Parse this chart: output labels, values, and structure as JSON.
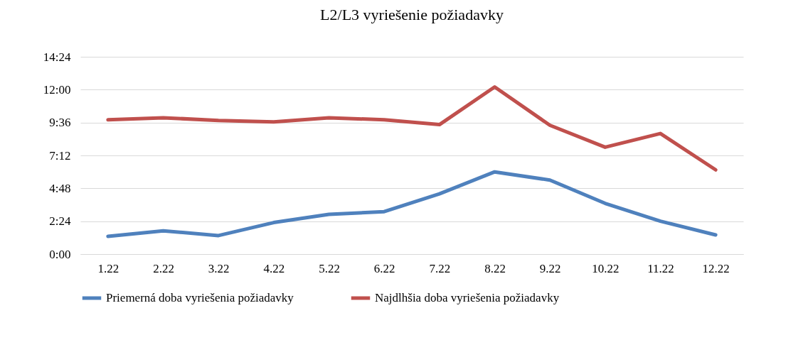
{
  "chart_data": {
    "type": "line",
    "title": "L2/L3 vyriešenie požiadavky",
    "categories": [
      "1.22",
      "2.22",
      "3.22",
      "4.22",
      "5.22",
      "6.22",
      "7.22",
      "8.22",
      "9.22",
      "10.22",
      "11.22",
      "12.22"
    ],
    "series": [
      {
        "name": "Priemerná doba vyriešenia požiadavky",
        "color": "#4f81bd",
        "values": [
          1.3,
          1.7,
          1.35,
          2.3,
          2.9,
          3.1,
          4.4,
          6.0,
          5.4,
          3.7,
          2.4,
          1.4
        ]
      },
      {
        "name": "Najdlhšia doba vyriešenia požiadavky",
        "color": "#c0504d",
        "values": [
          9.8,
          9.95,
          9.75,
          9.65,
          9.95,
          9.8,
          9.45,
          12.2,
          9.4,
          7.8,
          8.8,
          6.15
        ]
      }
    ],
    "ylim": [
      0,
      14.4
    ],
    "yticks": [
      {
        "value": 0,
        "label": "0:00"
      },
      {
        "value": 2.4,
        "label": "2:24"
      },
      {
        "value": 4.8,
        "label": "4:48"
      },
      {
        "value": 7.2,
        "label": "7:12"
      },
      {
        "value": 9.6,
        "label": "9:36"
      },
      {
        "value": 12,
        "label": "12:00"
      },
      {
        "value": 14.4,
        "label": "14:24"
      }
    ],
    "grid": "y",
    "legend": "bottom",
    "marker": "none",
    "line_style": "solid"
  }
}
